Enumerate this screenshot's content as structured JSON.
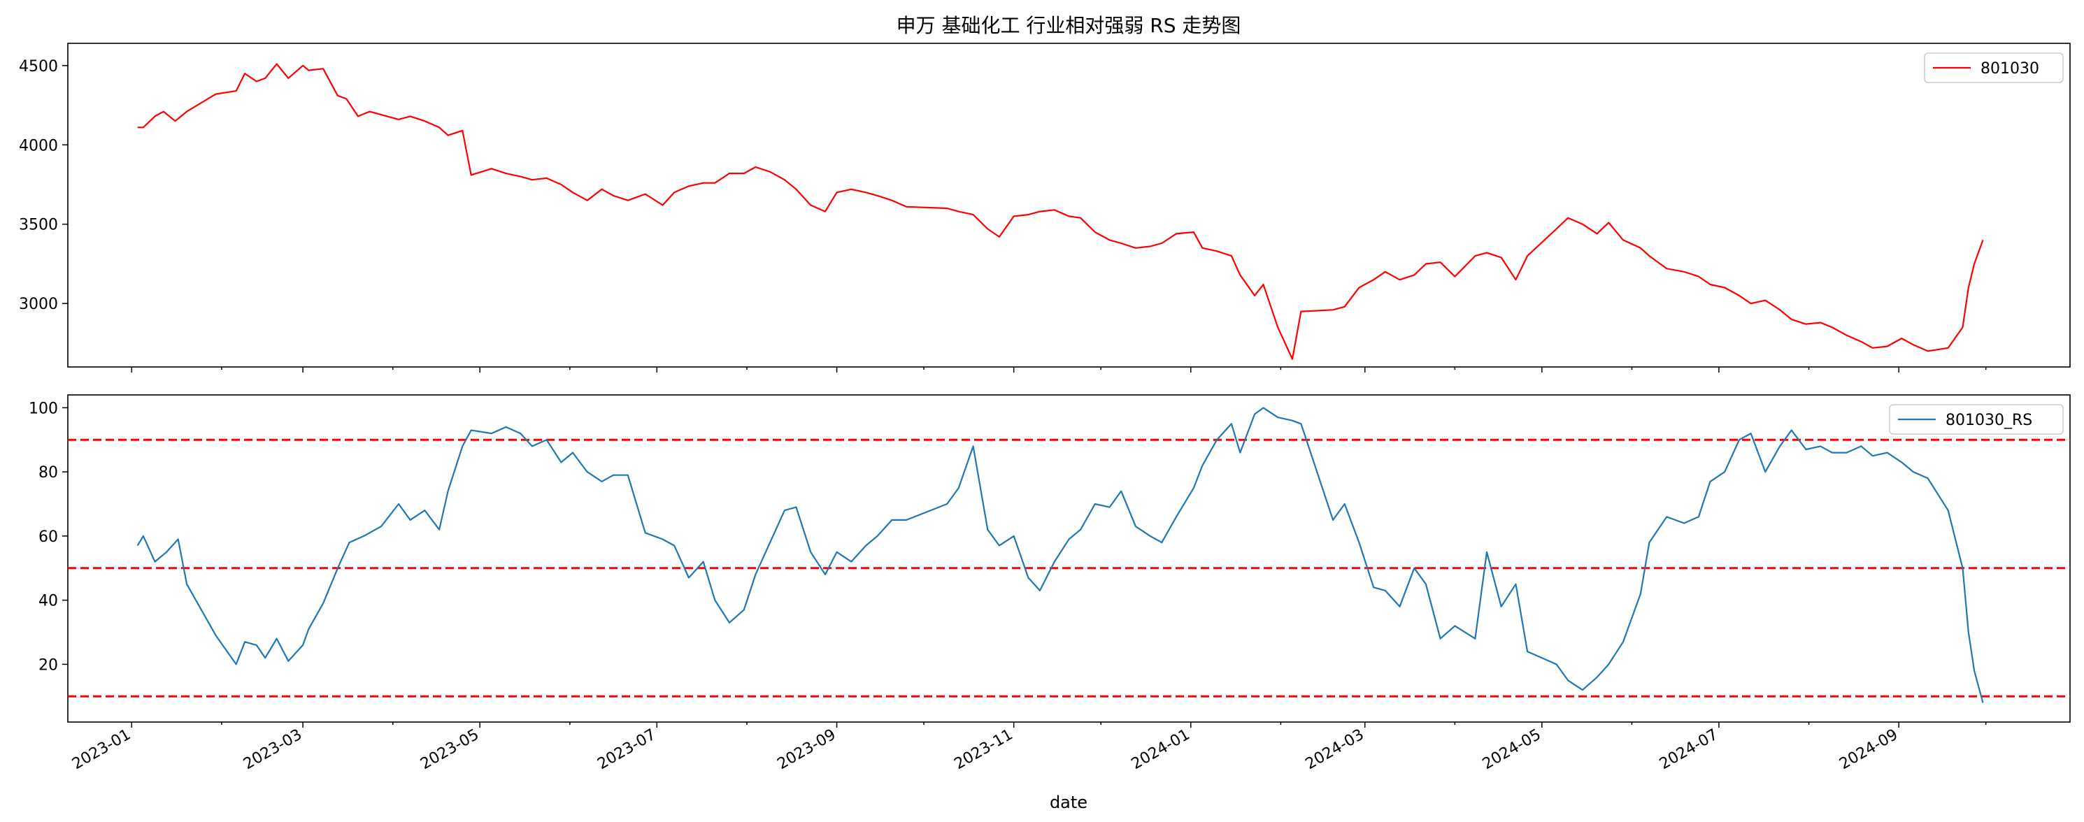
{
  "chart_data": [
    {
      "type": "line",
      "title": "申万 基础化工 行业相对强弱 RS 走势图",
      "xlabel": "",
      "ylabel": "",
      "ylim": [
        2600,
        4640
      ],
      "yticks": [
        3000,
        3500,
        4000,
        4500
      ],
      "grid": false,
      "legend_position": "top-right",
      "series": [
        {
          "name": "801030",
          "color": "#ff0000",
          "x": [
            "2023-01-03",
            "2023-01-05",
            "2023-01-09",
            "2023-01-12",
            "2023-01-16",
            "2023-01-20",
            "2023-01-30",
            "2023-02-06",
            "2023-02-09",
            "2023-02-13",
            "2023-02-16",
            "2023-02-20",
            "2023-02-24",
            "2023-03-01",
            "2023-03-03",
            "2023-03-08",
            "2023-03-13",
            "2023-03-16",
            "2023-03-20",
            "2023-03-24",
            "2023-03-28",
            "2023-04-03",
            "2023-04-07",
            "2023-04-12",
            "2023-04-17",
            "2023-04-20",
            "2023-04-25",
            "2023-04-28",
            "2023-05-05",
            "2023-05-10",
            "2023-05-15",
            "2023-05-19",
            "2023-05-24",
            "2023-05-29",
            "2023-06-02",
            "2023-06-07",
            "2023-06-12",
            "2023-06-16",
            "2023-06-21",
            "2023-06-27",
            "2023-07-03",
            "2023-07-07",
            "2023-07-12",
            "2023-07-17",
            "2023-07-21",
            "2023-07-26",
            "2023-07-31",
            "2023-08-04",
            "2023-08-09",
            "2023-08-14",
            "2023-08-18",
            "2023-08-23",
            "2023-08-28",
            "2023-09-01",
            "2023-09-06",
            "2023-09-11",
            "2023-09-15",
            "2023-09-20",
            "2023-09-25",
            "2023-10-09",
            "2023-10-13",
            "2023-10-18",
            "2023-10-23",
            "2023-10-27",
            "2023-11-01",
            "2023-11-06",
            "2023-11-10",
            "2023-11-15",
            "2023-11-20",
            "2023-11-24",
            "2023-11-29",
            "2023-12-04",
            "2023-12-08",
            "2023-12-13",
            "2023-12-18",
            "2023-12-22",
            "2023-12-27",
            "2024-01-02",
            "2024-01-05",
            "2024-01-10",
            "2024-01-15",
            "2024-01-18",
            "2024-01-23",
            "2024-01-26",
            "2024-01-31",
            "2024-02-05",
            "2024-02-08",
            "2024-02-19",
            "2024-02-23",
            "2024-02-28",
            "2024-03-04",
            "2024-03-08",
            "2024-03-13",
            "2024-03-18",
            "2024-03-22",
            "2024-03-27",
            "2024-04-01",
            "2024-04-08",
            "2024-04-12",
            "2024-04-17",
            "2024-04-22",
            "2024-04-26",
            "2024-05-06",
            "2024-05-10",
            "2024-05-15",
            "2024-05-20",
            "2024-05-24",
            "2024-05-29",
            "2024-06-04",
            "2024-06-07",
            "2024-06-13",
            "2024-06-19",
            "2024-06-24",
            "2024-06-28",
            "2024-07-03",
            "2024-07-08",
            "2024-07-12",
            "2024-07-17",
            "2024-07-22",
            "2024-07-26",
            "2024-07-31",
            "2024-08-05",
            "2024-08-09",
            "2024-08-14",
            "2024-08-19",
            "2024-08-23",
            "2024-08-28",
            "2024-09-02",
            "2024-09-06",
            "2024-09-11",
            "2024-09-18",
            "2024-09-23",
            "2024-09-25",
            "2024-09-27",
            "2024-09-30"
          ],
          "values": [
            4110,
            4110,
            4180,
            4210,
            4150,
            4210,
            4320,
            4340,
            4450,
            4400,
            4420,
            4510,
            4420,
            4500,
            4470,
            4480,
            4310,
            4290,
            4180,
            4210,
            4190,
            4160,
            4180,
            4150,
            4110,
            4060,
            4090,
            3810,
            3850,
            3820,
            3800,
            3780,
            3790,
            3750,
            3700,
            3650,
            3720,
            3680,
            3650,
            3690,
            3620,
            3700,
            3740,
            3760,
            3760,
            3820,
            3820,
            3860,
            3830,
            3780,
            3720,
            3620,
            3580,
            3700,
            3720,
            3700,
            3680,
            3650,
            3610,
            3600,
            3580,
            3560,
            3470,
            3420,
            3550,
            3560,
            3580,
            3590,
            3550,
            3540,
            3450,
            3400,
            3380,
            3350,
            3360,
            3380,
            3440,
            3450,
            3350,
            3330,
            3300,
            3180,
            3050,
            3120,
            2850,
            2650,
            2950,
            2960,
            2980,
            3100,
            3150,
            3200,
            3150,
            3180,
            3250,
            3260,
            3170,
            3300,
            3320,
            3290,
            3150,
            3300,
            3470,
            3540,
            3500,
            3440,
            3510,
            3400,
            3350,
            3300,
            3220,
            3200,
            3170,
            3120,
            3100,
            3050,
            3000,
            3020,
            2960,
            2900,
            2870,
            2880,
            2850,
            2800,
            2760,
            2720,
            2730,
            2780,
            2740,
            2700,
            2720,
            2850,
            3100,
            3250,
            3400
          ]
        }
      ]
    },
    {
      "type": "line",
      "xlabel": "date",
      "ylabel": "",
      "ylim": [
        2,
        104
      ],
      "yticks": [
        20,
        40,
        60,
        80,
        100
      ],
      "xlim": [
        "2022-12-10",
        "2024-10-30"
      ],
      "xticks": [
        "2023-01",
        "2023-03",
        "2023-05",
        "2023-07",
        "2023-09",
        "2023-11",
        "2024-01",
        "2024-03",
        "2024-05",
        "2024-07",
        "2024-09"
      ],
      "grid": false,
      "legend_position": "top-right",
      "hlines": [
        90,
        50,
        10
      ],
      "hline_color": "#ff0000",
      "series": [
        {
          "name": "801030_RS",
          "color": "#1f77b4",
          "x": [
            "2023-01-03",
            "2023-01-05",
            "2023-01-09",
            "2023-01-13",
            "2023-01-17",
            "2023-01-20",
            "2023-01-30",
            "2023-02-06",
            "2023-02-09",
            "2023-02-13",
            "2023-02-16",
            "2023-02-20",
            "2023-02-24",
            "2023-03-01",
            "2023-03-03",
            "2023-03-08",
            "2023-03-13",
            "2023-03-17",
            "2023-03-22",
            "2023-03-28",
            "2023-04-03",
            "2023-04-07",
            "2023-04-12",
            "2023-04-17",
            "2023-04-20",
            "2023-04-25",
            "2023-04-28",
            "2023-05-05",
            "2023-05-10",
            "2023-05-15",
            "2023-05-19",
            "2023-05-24",
            "2023-05-29",
            "2023-06-02",
            "2023-06-07",
            "2023-06-12",
            "2023-06-16",
            "2023-06-21",
            "2023-06-27",
            "2023-07-03",
            "2023-07-07",
            "2023-07-12",
            "2023-07-17",
            "2023-07-21",
            "2023-07-26",
            "2023-07-31",
            "2023-08-04",
            "2023-08-09",
            "2023-08-14",
            "2023-08-18",
            "2023-08-23",
            "2023-08-28",
            "2023-09-01",
            "2023-09-06",
            "2023-09-11",
            "2023-09-15",
            "2023-09-20",
            "2023-09-25",
            "2023-10-09",
            "2023-10-13",
            "2023-10-18",
            "2023-10-23",
            "2023-10-27",
            "2023-11-01",
            "2023-11-06",
            "2023-11-10",
            "2023-11-15",
            "2023-11-20",
            "2023-11-24",
            "2023-11-29",
            "2023-12-04",
            "2023-12-08",
            "2023-12-13",
            "2023-12-18",
            "2023-12-22",
            "2023-12-27",
            "2024-01-02",
            "2024-01-05",
            "2024-01-10",
            "2024-01-15",
            "2024-01-18",
            "2024-01-23",
            "2024-01-26",
            "2024-01-31",
            "2024-02-05",
            "2024-02-08",
            "2024-02-19",
            "2024-02-23",
            "2024-02-28",
            "2024-03-04",
            "2024-03-08",
            "2024-03-13",
            "2024-03-18",
            "2024-03-22",
            "2024-03-27",
            "2024-04-01",
            "2024-04-08",
            "2024-04-12",
            "2024-04-17",
            "2024-04-22",
            "2024-04-26",
            "2024-05-06",
            "2024-05-10",
            "2024-05-15",
            "2024-05-20",
            "2024-05-24",
            "2024-05-29",
            "2024-06-04",
            "2024-06-07",
            "2024-06-13",
            "2024-06-19",
            "2024-06-24",
            "2024-06-28",
            "2024-07-03",
            "2024-07-08",
            "2024-07-12",
            "2024-07-17",
            "2024-07-22",
            "2024-07-26",
            "2024-07-31",
            "2024-08-05",
            "2024-08-09",
            "2024-08-14",
            "2024-08-19",
            "2024-08-23",
            "2024-08-28",
            "2024-09-02",
            "2024-09-06",
            "2024-09-11",
            "2024-09-18",
            "2024-09-23",
            "2024-09-25",
            "2024-09-27",
            "2024-09-30"
          ],
          "values": [
            57,
            60,
            52,
            55,
            59,
            45,
            29,
            20,
            27,
            26,
            22,
            28,
            21,
            26,
            31,
            39,
            50,
            58,
            60,
            63,
            70,
            65,
            68,
            62,
            74,
            88,
            93,
            92,
            94,
            92,
            88,
            90,
            83,
            86,
            80,
            77,
            79,
            79,
            61,
            59,
            57,
            47,
            52,
            40,
            33,
            37,
            48,
            58,
            68,
            69,
            55,
            48,
            55,
            52,
            57,
            60,
            65,
            65,
            70,
            75,
            88,
            62,
            57,
            60,
            47,
            43,
            52,
            59,
            62,
            70,
            69,
            74,
            63,
            60,
            58,
            66,
            75,
            82,
            90,
            95,
            86,
            98,
            100,
            97,
            96,
            95,
            65,
            70,
            58,
            44,
            43,
            38,
            50,
            45,
            28,
            32,
            28,
            55,
            38,
            45,
            24,
            20,
            15,
            12,
            16,
            20,
            27,
            42,
            58,
            66,
            64,
            66,
            77,
            80,
            90,
            92,
            80,
            88,
            93,
            87,
            88,
            86,
            86,
            88,
            85,
            86,
            83,
            80,
            78,
            68,
            50,
            30,
            18,
            8
          ]
        }
      ]
    }
  ]
}
